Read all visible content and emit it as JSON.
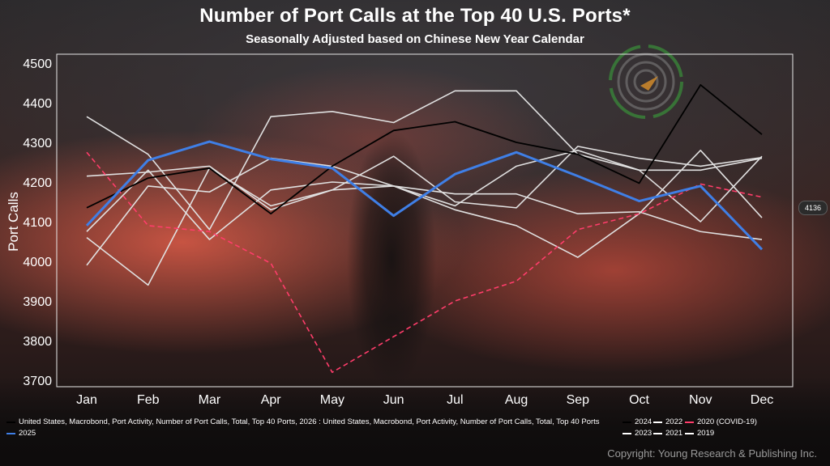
{
  "title": "Number of Port Calls at the Top 40 U.S. Ports*",
  "subtitle": "Seasonally Adjusted based on Chinese New Year Calendar",
  "copyright": "Copyright: Young Research & Publishing Inc.",
  "value_tag": "4136",
  "legend": [
    {
      "label": "United States, Macrobond, Port Activity, Number of Port Calls, Total, Top 40 Ports, 2026 : United States, Macrobond, Port Activity, Number of Port Calls, Total, Top 40 Ports",
      "color": "#000000",
      "style": "solid"
    },
    {
      "label": "2024",
      "color": "#000000",
      "style": "solid"
    },
    {
      "label": "2022",
      "color": "#ffffff",
      "style": "solid"
    },
    {
      "label": "2020 (COVID-19)",
      "color": "#ff3d6b",
      "style": "dashed"
    },
    {
      "label": "2025",
      "color": "#3f7fe6",
      "style": "solid"
    },
    {
      "label": "2023",
      "color": "#ffffff",
      "style": "solid"
    },
    {
      "label": "2021",
      "color": "#ffffff",
      "style": "solid"
    },
    {
      "label": "2019",
      "color": "#ffffff",
      "style": "solid"
    }
  ],
  "chart_data": {
    "type": "line",
    "title": "Number of Port Calls at the Top 40 U.S. Ports*",
    "subtitle": "Seasonally Adjusted based on Chinese New Year Calendar",
    "xlabel": "",
    "ylabel": "Port Calls",
    "categories": [
      "Jan",
      "Feb",
      "Mar",
      "Apr",
      "May",
      "Jun",
      "Jul",
      "Aug",
      "Sep",
      "Oct",
      "Nov",
      "Dec"
    ],
    "ylim": [
      3700,
      4500
    ],
    "yticks": [
      3700,
      3800,
      3900,
      4000,
      4100,
      4200,
      4300,
      4400,
      4500
    ],
    "grid": false,
    "legend_position": "bottom",
    "series": [
      {
        "name": "2022",
        "color": "#e0e0e0",
        "width": 1.6,
        "dash": false,
        "values": [
          4365,
          4270,
          4080,
          4365,
          4378,
          4350,
          4430,
          4430,
          4270,
          4230,
          4100,
          4265
        ]
      },
      {
        "name": "2023",
        "color": "#e0e0e0",
        "width": 1.6,
        "dash": false,
        "values": [
          3990,
          4190,
          4175,
          4260,
          4240,
          4190,
          4130,
          4090,
          4010,
          4120,
          4280,
          4110
        ]
      },
      {
        "name": "2021",
        "color": "#e0e0e0",
        "width": 1.6,
        "dash": false,
        "values": [
          4075,
          4230,
          4055,
          4180,
          4200,
          4190,
          4170,
          4170,
          4120,
          4125,
          4075,
          4055
        ]
      },
      {
        "name": "2019",
        "color": "#e0e0e0",
        "width": 1.6,
        "dash": false,
        "values": [
          4215,
          4225,
          4240,
          4130,
          4180,
          4265,
          4150,
          4135,
          4290,
          4260,
          4240,
          4262
        ]
      },
      {
        "name": "",
        "color": "#e0e0e0",
        "width": 1.6,
        "dash": false,
        "values": [
          4060,
          3940,
          4235,
          4140,
          4180,
          4190,
          4140,
          4240,
          4280,
          4230,
          4230,
          4260
        ]
      },
      {
        "name": "2024",
        "color": "#000000",
        "width": 1.8,
        "dash": false,
        "values": [
          4135,
          4210,
          4235,
          4120,
          4240,
          4330,
          4352,
          4300,
          4270,
          4197,
          4445,
          4320
        ]
      },
      {
        "name": "2020 (COVID-19)",
        "color": "#ff3d6b",
        "width": 1.6,
        "dash": true,
        "values": [
          4275,
          4090,
          4075,
          3995,
          3720,
          3810,
          3900,
          3950,
          4080,
          4120,
          4195,
          4162
        ]
      },
      {
        "name": "2025",
        "color": "#3f7fe6",
        "width": 3,
        "dash": false,
        "values": [
          4090,
          4255,
          4302,
          4258,
          4235,
          4115,
          4220,
          4275,
          4215,
          4152,
          4190,
          4030
        ]
      }
    ]
  }
}
